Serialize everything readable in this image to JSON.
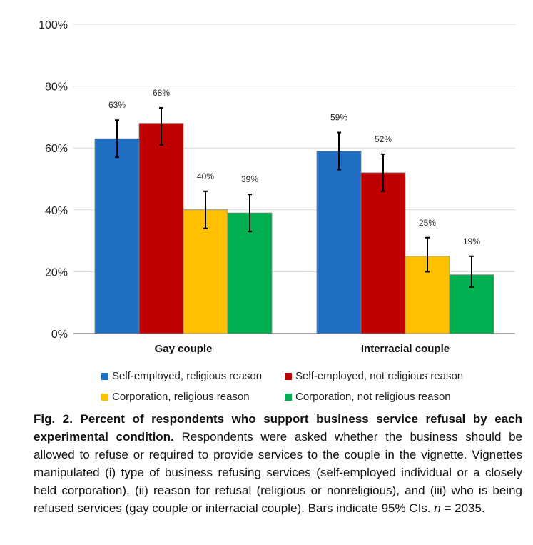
{
  "chart_data": {
    "type": "bar",
    "categories": [
      "Gay couple",
      "Interracial couple"
    ],
    "series": [
      {
        "name": "Self-employed, religious reason",
        "color": "#1F6FC5",
        "values": [
          63,
          59
        ],
        "labels": [
          "63%",
          "59%"
        ],
        "ci_low": [
          57,
          53
        ],
        "ci_high": [
          69,
          65
        ]
      },
      {
        "name": "Self-employed, not religious reason",
        "color": "#C00000",
        "values": [
          68,
          52
        ],
        "labels": [
          "68%",
          "52%"
        ],
        "ci_low": [
          61,
          46
        ],
        "ci_high": [
          73,
          58
        ]
      },
      {
        "name": "Corporation, religious reason",
        "color": "#FFC000",
        "values": [
          40,
          25
        ],
        "labels": [
          "40%",
          "25%"
        ],
        "ci_low": [
          34,
          20
        ],
        "ci_high": [
          46,
          31
        ]
      },
      {
        "name": "Corporation, not religious reason",
        "color": "#00B050",
        "values": [
          39,
          19
        ],
        "labels": [
          "39%",
          "19%"
        ],
        "ci_low": [
          33,
          15
        ],
        "ci_high": [
          45,
          25
        ]
      }
    ],
    "ylim": [
      0,
      100
    ],
    "yticks": [
      0,
      20,
      40,
      60,
      80,
      100
    ],
    "ytick_labels": [
      "0%",
      "20%",
      "40%",
      "60%",
      "80%",
      "100%"
    ],
    "grid": true,
    "error_bars": true,
    "legend_position": "bottom"
  },
  "caption": {
    "bold": "Fig. 2.  Percent of respondents who support business service refusal by each experimental condition.",
    "text1": " Respondents were asked whether the business should be allowed to refuse or required to provide services to the couple in the vignette. Vignettes manipulated (i) type of business refusing services (self-employed individual or a closely held corporation), (ii) reason for refusal (religious or nonreligious), and (iii) who is being refused services (gay couple or interracial couple). Bars indicate 95% CIs. ",
    "italic": "n",
    "text2": " = 2035."
  }
}
